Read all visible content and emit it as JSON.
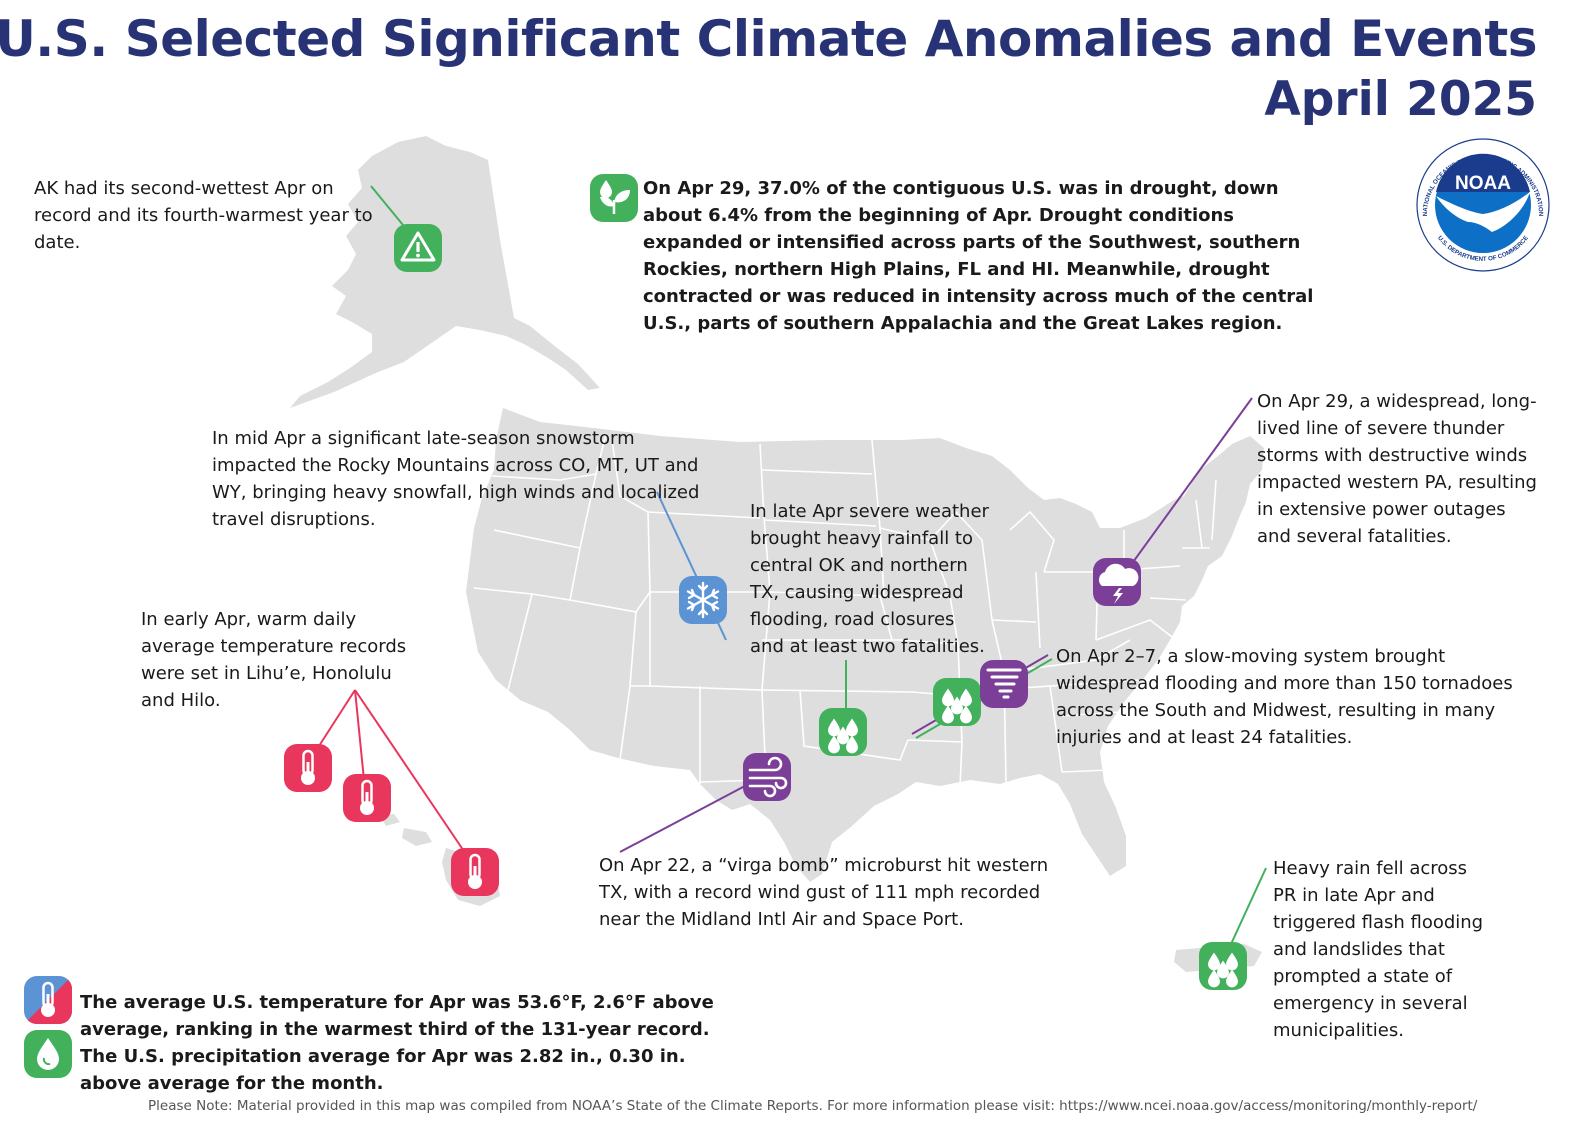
{
  "title": {
    "line1": "U.S. Selected Significant Climate Anomalies and Events",
    "line2": "April 2025"
  },
  "logo": {
    "text": "NOAA",
    "ring_top": "NATIONAL OCEANIC AND ATMOSPHERIC ADMINISTRATION",
    "ring_bottom": "U.S. DEPARTMENT OF COMMERCE"
  },
  "colors": {
    "title": "#283375",
    "map_fill": "#dedede",
    "state_border": "#ffffff",
    "green": "#43b05c",
    "purple": "#7b3f98",
    "blue": "#5b93d4",
    "red": "#e8365d"
  },
  "annotations": {
    "alaska": {
      "text": "AK had its second-wettest Apr on record and its fourth-warmest year to date.",
      "icon": "warning-icon"
    },
    "drought": {
      "text": "On Apr 29, 37.0% of the contiguous U.S. was in drought, down about 6.4% from the beginning of Apr. Drought conditions expanded or intensified across parts of the Southwest, southern Rockies, northern High Plains, FL and HI. Meanwhile, drought contracted or was reduced in intensity across much of the central U.S., parts of southern Appalachia and the Great Lakes region.",
      "icon": "drought-icon"
    },
    "snowstorm": {
      "text": "In mid Apr a significant late-season snowstorm impacted the Rocky Mountains across CO, MT, UT and WY, bringing heavy snowfall, high winds and localized travel disruptions.",
      "icon": "snowflake-icon"
    },
    "pa_storms": {
      "text": "On Apr 29, a widespread, long-lived line of severe thunder storms with destructive winds impacted western PA, resulting in extensive power outages and several fatalities.",
      "icon": "thunderstorm-icon"
    },
    "ok_tx_rain": {
      "text": "In late Apr severe weather brought heavy rainfall to central OK and northern TX, causing widespread flooding, road closures and at least two fatalities.",
      "icon": "heavy-rain-icon"
    },
    "hawaii": {
      "text": "In early Apr, warm daily average temperature records were set in Lihu’e, Honolulu and Hilo.",
      "icon": "thermometer-icon"
    },
    "south_midwest": {
      "text": "On Apr 2–7, a slow-moving system brought widespread flooding and more than 150 tornadoes across the South and Midwest, resulting in many injuries and at least 24 fatalities.",
      "icon": "tornado-icon"
    },
    "virga": {
      "text": "On Apr 22, a “virga bomb” microburst hit western TX, with a record wind gust of 111 mph recorded near the Midland Intl Air and Space Port.",
      "icon": "wind-icon"
    },
    "puerto_rico": {
      "text": "Heavy rain fell across PR in late Apr and triggered flash flooding and landslides that prompted a state of emergency in several municipalities.",
      "icon": "heavy-rain-icon"
    },
    "summary": {
      "text": "The average U.S. temperature for Apr was 53.6°F, 2.6°F above average, ranking in the warmest third of the 131-year record. The U.S. precipitation average for Apr was 2.82 in., 0.30 in. above average for the month."
    }
  },
  "footer": "Please Note: Material provided in this map was compiled from NOAA’s State of the Climate Reports. For more information please visit: https://www.ncei.noaa.gov/access/monitoring/monthly-report/"
}
